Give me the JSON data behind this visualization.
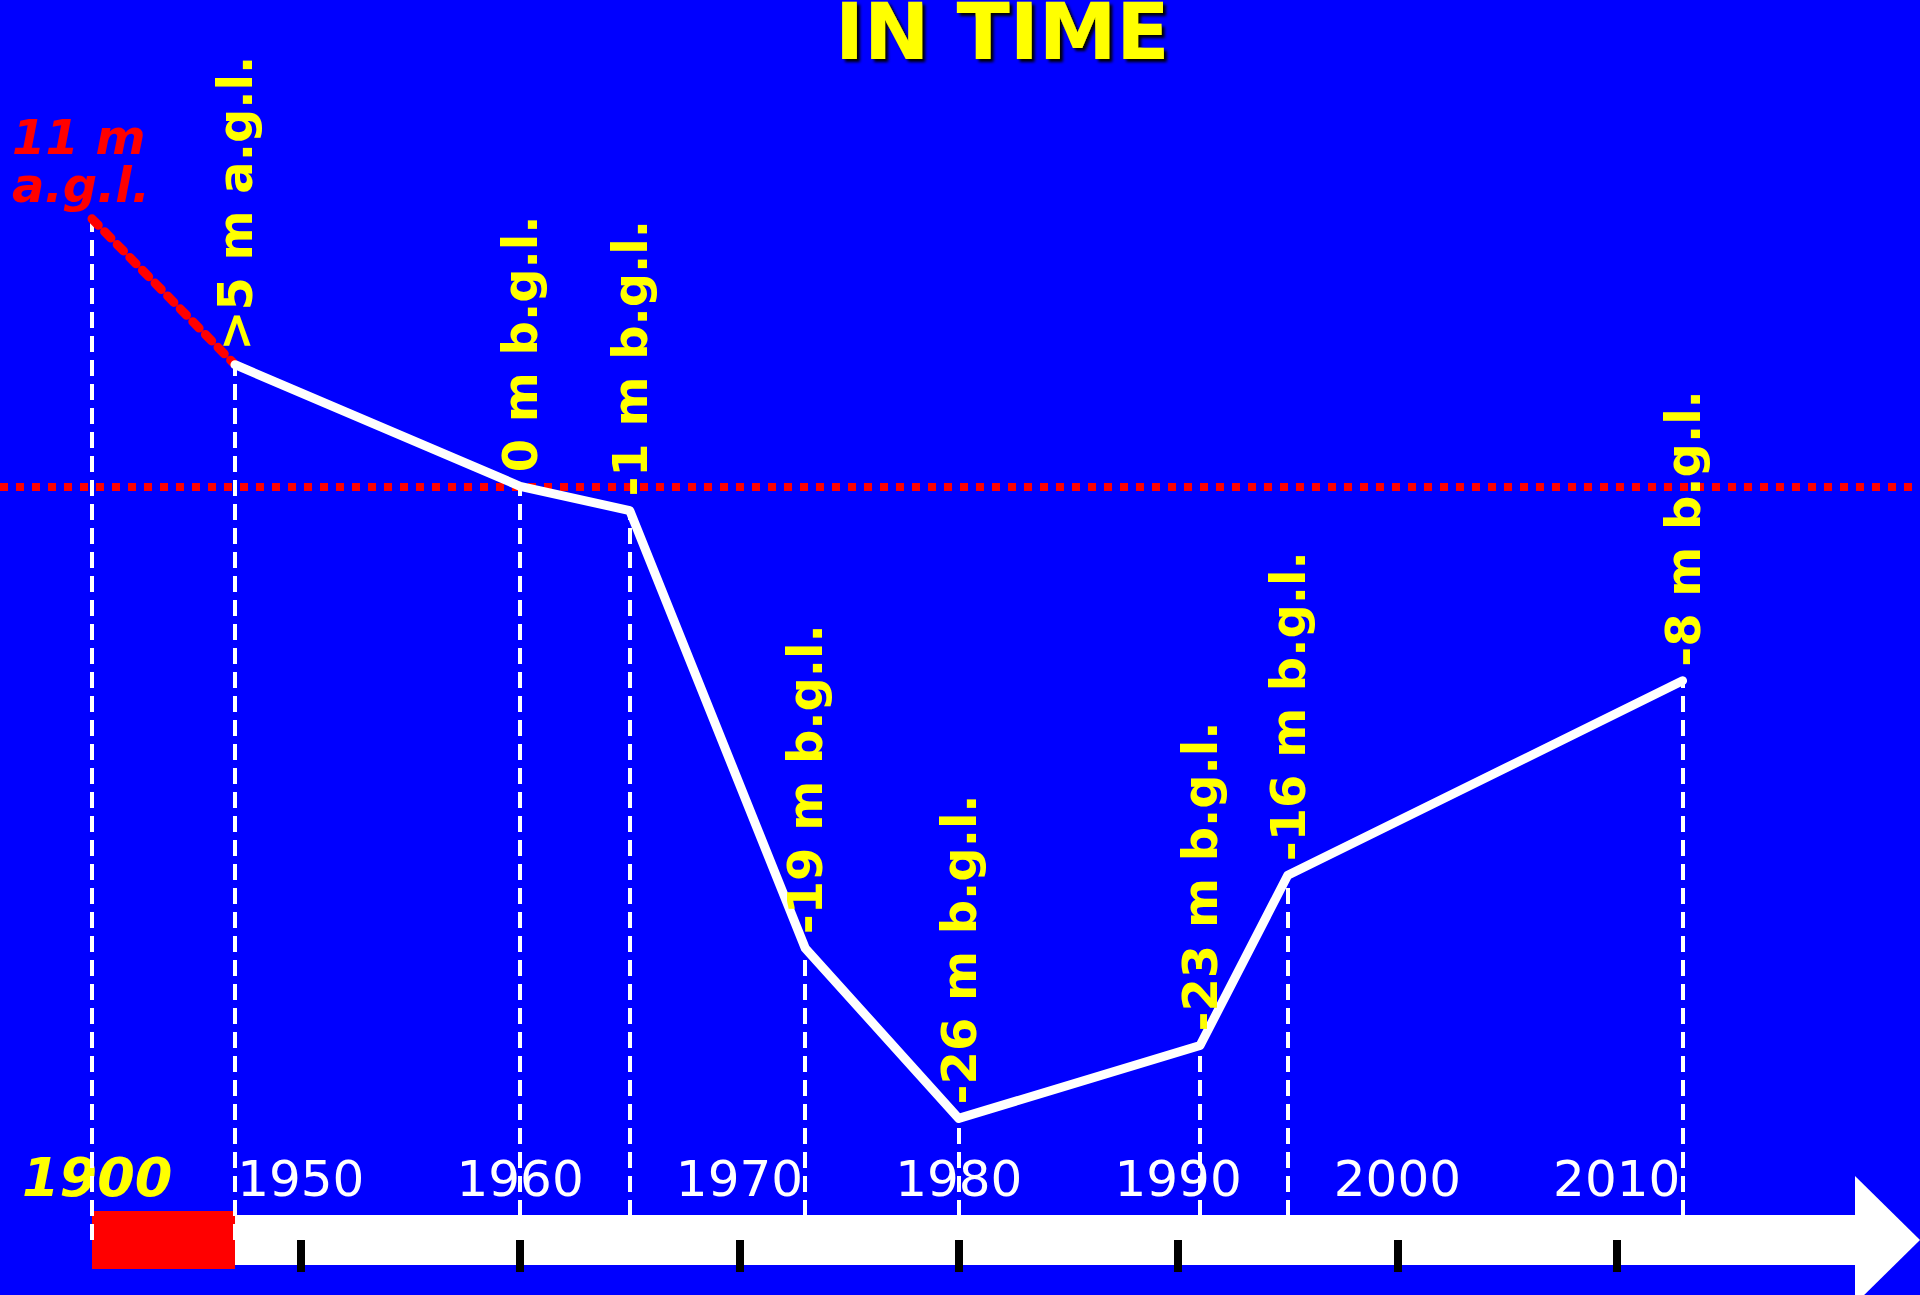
{
  "chart_data": [
    {
      "type": "line",
      "categories": [
        null,
        null
      ],
      "annotations": [
        "1900"
      ],
      "tick_labels": "x",
      "marker": "none",
      "series": [
        {
          "color": "#ff0000",
          "line_style": "dotted",
          "values": [
            11,
            5
          ],
          "value_labels": [
            "11 m a.g.l.",
            ">5 m a.g.l."
          ]
        }
      ]
    },
    {
      "type": "line",
      "title": "IN TIME",
      "x": [
        1947,
        1960,
        1965,
        1973,
        1980,
        1991,
        1995,
        2013
      ],
      "xlim": [
        1947,
        2021
      ],
      "xticks": [
        1950,
        1960,
        1970,
        1980,
        1990,
        2000,
        2010
      ],
      "ylim": [
        -31,
        20
      ],
      "tick_labels": "x",
      "marker": "none",
      "series": [
        {
          "color": "#ffffff",
          "line_style": "solid",
          "values": [
            5,
            0,
            -1,
            -19,
            -26,
            -23,
            -16,
            -8
          ],
          "value_labels": [
            null,
            "0 m b.g.l.",
            "-1 m b.g.l.",
            "-19 m b.g.l.",
            "-26 m b.g.l.",
            "-23 m b.g.l.",
            "-16 m b.g.l.",
            "-8 m b.g.l."
          ]
        }
      ],
      "ref_lines": [
        {
          "axis": "y",
          "value": 0,
          "color": "#ff0000",
          "line_style": "dotted"
        },
        {
          "axis": "x",
          "value": 1947,
          "color": "#ffffff",
          "line_style": "dashed"
        },
        {
          "axis": "x",
          "value": 1960,
          "color": "#ffffff",
          "line_style": "dashed"
        },
        {
          "axis": "x",
          "value": 1965,
          "color": "#ffffff",
          "line_style": "dashed"
        },
        {
          "axis": "x",
          "value": 1973,
          "color": "#ffffff",
          "line_style": "dashed"
        },
        {
          "axis": "x",
          "value": 1980,
          "color": "#ffffff",
          "line_style": "dashed"
        },
        {
          "axis": "x",
          "value": 1991,
          "color": "#ffffff",
          "line_style": "dashed"
        },
        {
          "axis": "x",
          "value": 1995,
          "color": "#ffffff",
          "line_style": "dashed"
        },
        {
          "axis": "x",
          "value": 2013,
          "color": "#ffffff",
          "line_style": "dashed"
        }
      ]
    }
  ]
}
